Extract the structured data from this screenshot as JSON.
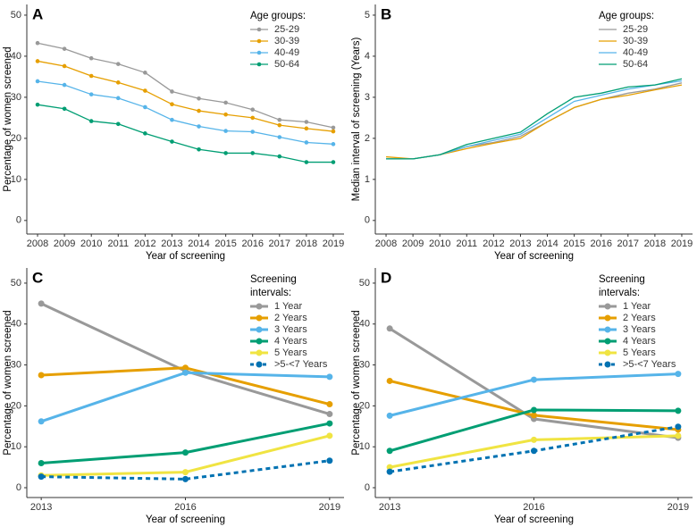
{
  "chart_data": [
    {
      "type": "line",
      "panel_label": "A",
      "xlabel": "Year of screening",
      "ylabel": "Percentage of women screened",
      "legend_title": [
        "Age groups:"
      ],
      "legend": "upper right",
      "markers": true,
      "linewidth": 1.3,
      "x": [
        2008,
        2009,
        2010,
        2011,
        2012,
        2013,
        2014,
        2015,
        2016,
        2017,
        2018,
        2019
      ],
      "xlim": [
        2007.6,
        2019.4
      ],
      "xticks": [
        2008,
        2009,
        2010,
        2011,
        2012,
        2013,
        2014,
        2015,
        2016,
        2017,
        2018,
        2019
      ],
      "ylim": [
        -3.3,
        52.6
      ],
      "yticks": [
        0,
        10,
        20,
        30,
        40,
        50
      ],
      "series": [
        {
          "name": "25-29",
          "color": "#999999",
          "values": [
            43.2,
            41.8,
            39.5,
            38.1,
            36.0,
            31.4,
            29.7,
            28.7,
            27.0,
            24.5,
            24.0,
            22.6
          ]
        },
        {
          "name": "30-39",
          "color": "#e69f00",
          "values": [
            38.8,
            37.6,
            35.2,
            33.6,
            31.6,
            28.3,
            26.7,
            25.8,
            25.0,
            23.2,
            22.4,
            21.7
          ]
        },
        {
          "name": "40-49",
          "color": "#56b4e9",
          "values": [
            33.9,
            33.0,
            30.7,
            29.8,
            27.6,
            24.5,
            22.9,
            21.8,
            21.6,
            20.3,
            19.0,
            18.6
          ]
        },
        {
          "name": "50-64",
          "color": "#009e73",
          "values": [
            28.2,
            27.2,
            24.2,
            23.5,
            21.2,
            19.2,
            17.3,
            16.4,
            16.4,
            15.6,
            14.2,
            14.2
          ]
        }
      ]
    },
    {
      "type": "line",
      "panel_label": "B",
      "xlabel": "Year of screening",
      "ylabel": "Median interval of screening (Years)",
      "legend_title": [
        "Age groups:"
      ],
      "legend": "upper right",
      "markers": false,
      "linewidth": 1.3,
      "x": [
        2008,
        2009,
        2010,
        2011,
        2012,
        2013,
        2014,
        2015,
        2016,
        2017,
        2018,
        2019
      ],
      "xlim": [
        2007.6,
        2019.4
      ],
      "xticks": [
        2008,
        2009,
        2010,
        2011,
        2012,
        2013,
        2014,
        2015,
        2016,
        2017,
        2018,
        2019
      ],
      "ylim": [
        -0.33,
        5.26
      ],
      "yticks": [
        0,
        1,
        2,
        3,
        4,
        5
      ],
      "series": [
        {
          "name": "25-29",
          "color": "#999999",
          "values": [
            1.5,
            1.5,
            1.6,
            1.8,
            1.9,
            2.05,
            2.4,
            2.75,
            2.95,
            3.1,
            3.2,
            3.35
          ]
        },
        {
          "name": "30-39",
          "color": "#e69f00",
          "values": [
            1.55,
            1.5,
            1.6,
            1.75,
            1.88,
            2.0,
            2.4,
            2.75,
            2.95,
            3.05,
            3.18,
            3.3
          ]
        },
        {
          "name": "40-49",
          "color": "#56b4e9",
          "values": [
            1.5,
            1.5,
            1.6,
            1.8,
            1.95,
            2.1,
            2.5,
            2.9,
            3.05,
            3.2,
            3.3,
            3.4
          ]
        },
        {
          "name": "50-64",
          "color": "#009e73",
          "values": [
            1.5,
            1.5,
            1.6,
            1.85,
            2.0,
            2.15,
            2.6,
            3.0,
            3.1,
            3.25,
            3.3,
            3.45
          ]
        }
      ]
    },
    {
      "type": "line",
      "panel_label": "C",
      "xlabel": "Year of screening",
      "ylabel": "Percentage of women screened",
      "legend_title": [
        "Screening",
        "intervals:"
      ],
      "legend": "upper right",
      "markers": true,
      "linewidth": 3,
      "x": [
        2013,
        2016,
        2019
      ],
      "xlim": [
        2012.7,
        2019.3
      ],
      "xticks": [
        2013,
        2016,
        2019
      ],
      "ylim": [
        -2.4,
        53.7
      ],
      "yticks": [
        0,
        10,
        20,
        30,
        40,
        50
      ],
      "series": [
        {
          "name": "1 Year",
          "color": "#999999",
          "values": [
            45,
            28.5,
            18
          ]
        },
        {
          "name": "2 Years",
          "color": "#e69f00",
          "values": [
            27.5,
            29.3,
            20.4
          ]
        },
        {
          "name": "3 Years",
          "color": "#56b4e9",
          "values": [
            16.2,
            28.1,
            27.1
          ]
        },
        {
          "name": "4 Years",
          "color": "#009e73",
          "values": [
            6,
            8.6,
            15.7
          ]
        },
        {
          "name": "5 Years",
          "color": "#f0e442",
          "values": [
            3,
            3.8,
            12.7
          ]
        },
        {
          "name": ">5-<7 Years",
          "color": "#0072b2",
          "linestyle": "dashed",
          "values": [
            2.7,
            2.1,
            6.6
          ]
        }
      ]
    },
    {
      "type": "line",
      "panel_label": "D",
      "xlabel": "Year of screening",
      "ylabel": "Percentage of women screened",
      "legend_title": [
        "Screening",
        "intervals:"
      ],
      "legend": "upper right",
      "markers": true,
      "linewidth": 3,
      "x": [
        2013,
        2016,
        2019
      ],
      "xlim": [
        2012.7,
        2019.3
      ],
      "xticks": [
        2013,
        2016,
        2019
      ],
      "ylim": [
        -2.4,
        53.7
      ],
      "yticks": [
        0,
        10,
        20,
        30,
        40,
        50
      ],
      "series": [
        {
          "name": "1 Year",
          "color": "#999999",
          "values": [
            38.9,
            16.8,
            12.2
          ]
        },
        {
          "name": "2 Years",
          "color": "#e69f00",
          "values": [
            26.1,
            17.7,
            14.2
          ]
        },
        {
          "name": "3 Years",
          "color": "#56b4e9",
          "values": [
            17.6,
            26.4,
            27.8
          ]
        },
        {
          "name": "4 Years",
          "color": "#009e73",
          "values": [
            9,
            19,
            18.8
          ]
        },
        {
          "name": "5 Years",
          "color": "#f0e442",
          "values": [
            5,
            11.7,
            12.7
          ]
        },
        {
          "name": ">5-<7 Years",
          "color": "#0072b2",
          "linestyle": "dashed",
          "values": [
            3.9,
            9,
            14.9
          ]
        }
      ]
    }
  ]
}
